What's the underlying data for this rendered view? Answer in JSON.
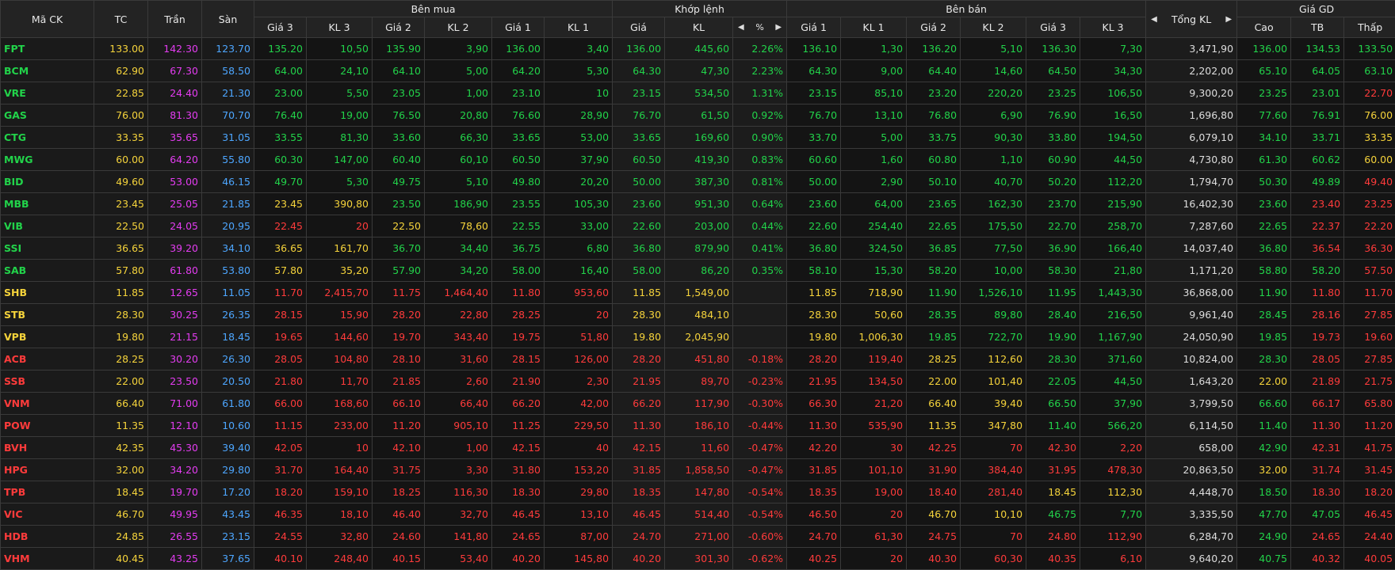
{
  "header": {
    "symbol": "Mã CK",
    "ref": "TC",
    "ceiling": "Trần",
    "floor": "Sàn",
    "buy_side": "Bên mua",
    "matched": "Khớp lệnh",
    "sell_side": "Bên bán",
    "total_vol": "Tổng KL",
    "price_range": "Giá GD",
    "bid_cols": [
      "Giá 3",
      "KL 3",
      "Giá 2",
      "KL 2",
      "Giá 1",
      "KL 1"
    ],
    "match_price": "Giá",
    "match_vol": "KL",
    "pct": "%",
    "ask_cols": [
      "Giá 1",
      "KL 1",
      "Giá 2",
      "KL 2",
      "Giá 3",
      "KL 3"
    ],
    "high": "Cao",
    "avg": "TB",
    "low": "Thấp",
    "prev_icon": "◀",
    "next_icon": "▶"
  },
  "colors": {
    "up": "#22d34a",
    "down": "#ff3b3b",
    "ref": "#f5d33b",
    "ceiling": "#e33cf0",
    "floor": "#4da6ff"
  },
  "rows": [
    {
      "sym": "FPT",
      "tc": "133.00",
      "tran": "142.30",
      "san": "123.70",
      "b3": "135.20",
      "bv3": "10,50",
      "b2": "135.90",
      "bv2": "3,90",
      "b1": "136.00",
      "bv1": "3,40",
      "mp": "136.00",
      "mv": "445,60",
      "pct": "2.26%",
      "a1": "136.10",
      "av1": "1,30",
      "a2": "136.20",
      "av2": "5,10",
      "a3": "136.30",
      "av3": "7,30",
      "tot": "3,471,90",
      "hi": "136.00",
      "avg": "134.53",
      "lo": "133.50",
      "c": {
        "sym": "up",
        "b3": "up",
        "b2": "up",
        "b1": "up",
        "mp": "up",
        "a1": "up",
        "a2": "up",
        "a3": "up",
        "hi": "up",
        "avg": "up",
        "lo": "up"
      }
    },
    {
      "sym": "BCM",
      "tc": "62.90",
      "tran": "67.30",
      "san": "58.50",
      "b3": "64.00",
      "bv3": "24,10",
      "b2": "64.10",
      "bv2": "5,00",
      "b1": "64.20",
      "bv1": "5,30",
      "mp": "64.30",
      "mv": "47,30",
      "pct": "2.23%",
      "a1": "64.30",
      "av1": "9,00",
      "a2": "64.40",
      "av2": "14,60",
      "a3": "64.50",
      "av3": "34,30",
      "tot": "2,202,00",
      "hi": "65.10",
      "avg": "64.05",
      "lo": "63.10",
      "c": {
        "sym": "up",
        "b3": "up",
        "b2": "up",
        "b1": "up",
        "mp": "up",
        "a1": "up",
        "a2": "up",
        "a3": "up",
        "hi": "up",
        "avg": "up",
        "lo": "up"
      }
    },
    {
      "sym": "VRE",
      "tc": "22.85",
      "tran": "24.40",
      "san": "21.30",
      "b3": "23.00",
      "bv3": "5,50",
      "b2": "23.05",
      "bv2": "1,00",
      "b1": "23.10",
      "bv1": "10",
      "mp": "23.15",
      "mv": "534,50",
      "pct": "1.31%",
      "a1": "23.15",
      "av1": "85,10",
      "a2": "23.20",
      "av2": "220,20",
      "a3": "23.25",
      "av3": "106,50",
      "tot": "9,300,20",
      "hi": "23.25",
      "avg": "23.01",
      "lo": "22.70",
      "c": {
        "sym": "up",
        "b3": "up",
        "b2": "up",
        "b1": "up",
        "mp": "up",
        "a1": "up",
        "a2": "up",
        "a3": "up",
        "hi": "up",
        "avg": "up",
        "lo": "down"
      }
    },
    {
      "sym": "GAS",
      "tc": "76.00",
      "tran": "81.30",
      "san": "70.70",
      "b3": "76.40",
      "bv3": "19,00",
      "b2": "76.50",
      "bv2": "20,80",
      "b1": "76.60",
      "bv1": "28,90",
      "mp": "76.70",
      "mv": "61,50",
      "pct": "0.92%",
      "a1": "76.70",
      "av1": "13,10",
      "a2": "76.80",
      "av2": "6,90",
      "a3": "76.90",
      "av3": "16,50",
      "tot": "1,696,80",
      "hi": "77.60",
      "avg": "76.91",
      "lo": "76.00",
      "c": {
        "sym": "up",
        "b3": "up",
        "b2": "up",
        "b1": "up",
        "mp": "up",
        "a1": "up",
        "a2": "up",
        "a3": "up",
        "hi": "up",
        "avg": "up",
        "lo": "ref"
      }
    },
    {
      "sym": "CTG",
      "tc": "33.35",
      "tran": "35.65",
      "san": "31.05",
      "b3": "33.55",
      "bv3": "81,30",
      "b2": "33.60",
      "bv2": "66,30",
      "b1": "33.65",
      "bv1": "53,00",
      "mp": "33.65",
      "mv": "169,60",
      "pct": "0.90%",
      "a1": "33.70",
      "av1": "5,00",
      "a2": "33.75",
      "av2": "90,30",
      "a3": "33.80",
      "av3": "194,50",
      "tot": "6,079,10",
      "hi": "34.10",
      "avg": "33.71",
      "lo": "33.35",
      "c": {
        "sym": "up",
        "b3": "up",
        "b2": "up",
        "b1": "up",
        "mp": "up",
        "a1": "up",
        "a2": "up",
        "a3": "up",
        "hi": "up",
        "avg": "up",
        "lo": "ref"
      }
    },
    {
      "sym": "MWG",
      "tc": "60.00",
      "tran": "64.20",
      "san": "55.80",
      "b3": "60.30",
      "bv3": "147,00",
      "b2": "60.40",
      "bv2": "60,10",
      "b1": "60.50",
      "bv1": "37,90",
      "mp": "60.50",
      "mv": "419,30",
      "pct": "0.83%",
      "a1": "60.60",
      "av1": "1,60",
      "a2": "60.80",
      "av2": "1,10",
      "a3": "60.90",
      "av3": "44,50",
      "tot": "4,730,80",
      "hi": "61.30",
      "avg": "60.62",
      "lo": "60.00",
      "c": {
        "sym": "up",
        "b3": "up",
        "b2": "up",
        "b1": "up",
        "mp": "up",
        "a1": "up",
        "a2": "up",
        "a3": "up",
        "hi": "up",
        "avg": "up",
        "lo": "ref"
      }
    },
    {
      "sym": "BID",
      "tc": "49.60",
      "tran": "53.00",
      "san": "46.15",
      "b3": "49.70",
      "bv3": "5,30",
      "b2": "49.75",
      "bv2": "5,10",
      "b1": "49.80",
      "bv1": "20,20",
      "mp": "50.00",
      "mv": "387,30",
      "pct": "0.81%",
      "a1": "50.00",
      "av1": "2,90",
      "a2": "50.10",
      "av2": "40,70",
      "a3": "50.20",
      "av3": "112,20",
      "tot": "1,794,70",
      "hi": "50.30",
      "avg": "49.89",
      "lo": "49.40",
      "c": {
        "sym": "up",
        "b3": "up",
        "b2": "up",
        "b1": "up",
        "mp": "up",
        "a1": "up",
        "a2": "up",
        "a3": "up",
        "hi": "up",
        "avg": "up",
        "lo": "down"
      }
    },
    {
      "sym": "MBB",
      "tc": "23.45",
      "tran": "25.05",
      "san": "21.85",
      "b3": "23.45",
      "bv3": "390,80",
      "b2": "23.50",
      "bv2": "186,90",
      "b1": "23.55",
      "bv1": "105,30",
      "mp": "23.60",
      "mv": "951,30",
      "pct": "0.64%",
      "a1": "23.60",
      "av1": "64,00",
      "a2": "23.65",
      "av2": "162,30",
      "a3": "23.70",
      "av3": "215,90",
      "tot": "16,402,30",
      "hi": "23.60",
      "avg": "23.40",
      "lo": "23.25",
      "c": {
        "sym": "up",
        "b3": "ref",
        "b2": "up",
        "b1": "up",
        "mp": "up",
        "a1": "up",
        "a2": "up",
        "a3": "up",
        "hi": "up",
        "avg": "down",
        "lo": "down"
      }
    },
    {
      "sym": "VIB",
      "tc": "22.50",
      "tran": "24.05",
      "san": "20.95",
      "b3": "22.45",
      "bv3": "20",
      "b2": "22.50",
      "bv2": "78,60",
      "b1": "22.55",
      "bv1": "33,00",
      "mp": "22.60",
      "mv": "203,00",
      "pct": "0.44%",
      "a1": "22.60",
      "av1": "254,40",
      "a2": "22.65",
      "av2": "175,50",
      "a3": "22.70",
      "av3": "258,70",
      "tot": "7,287,60",
      "hi": "22.65",
      "avg": "22.37",
      "lo": "22.20",
      "c": {
        "sym": "up",
        "b3": "down",
        "b2": "ref",
        "b1": "up",
        "mp": "up",
        "a1": "up",
        "a2": "up",
        "a3": "up",
        "hi": "up",
        "avg": "down",
        "lo": "down"
      }
    },
    {
      "sym": "SSI",
      "tc": "36.65",
      "tran": "39.20",
      "san": "34.10",
      "b3": "36.65",
      "bv3": "161,70",
      "b2": "36.70",
      "bv2": "34,40",
      "b1": "36.75",
      "bv1": "6,80",
      "mp": "36.80",
      "mv": "879,90",
      "pct": "0.41%",
      "a1": "36.80",
      "av1": "324,50",
      "a2": "36.85",
      "av2": "77,50",
      "a3": "36.90",
      "av3": "166,40",
      "tot": "14,037,40",
      "hi": "36.80",
      "avg": "36.54",
      "lo": "36.30",
      "c": {
        "sym": "up",
        "b3": "ref",
        "b2": "up",
        "b1": "up",
        "mp": "up",
        "a1": "up",
        "a2": "up",
        "a3": "up",
        "hi": "up",
        "avg": "down",
        "lo": "down"
      }
    },
    {
      "sym": "SAB",
      "tc": "57.80",
      "tran": "61.80",
      "san": "53.80",
      "b3": "57.80",
      "bv3": "35,20",
      "b2": "57.90",
      "bv2": "34,20",
      "b1": "58.00",
      "bv1": "16,40",
      "mp": "58.00",
      "mv": "86,20",
      "pct": "0.35%",
      "a1": "58.10",
      "av1": "15,30",
      "a2": "58.20",
      "av2": "10,00",
      "a3": "58.30",
      "av3": "21,80",
      "tot": "1,171,20",
      "hi": "58.80",
      "avg": "58.20",
      "lo": "57.50",
      "c": {
        "sym": "up",
        "b3": "ref",
        "b2": "up",
        "b1": "up",
        "mp": "up",
        "a1": "up",
        "a2": "up",
        "a3": "up",
        "hi": "up",
        "avg": "up",
        "lo": "down"
      }
    },
    {
      "sym": "SHB",
      "tc": "11.85",
      "tran": "12.65",
      "san": "11.05",
      "b3": "11.70",
      "bv3": "2,415,70",
      "b2": "11.75",
      "bv2": "1,464,40",
      "b1": "11.80",
      "bv1": "953,60",
      "mp": "11.85",
      "mv": "1,549,00",
      "pct": "",
      "a1": "11.85",
      "av1": "718,90",
      "a2": "11.90",
      "av2": "1,526,10",
      "a3": "11.95",
      "av3": "1,443,30",
      "tot": "36,868,00",
      "hi": "11.90",
      "avg": "11.80",
      "lo": "11.70",
      "c": {
        "sym": "ref",
        "b3": "down",
        "b2": "down",
        "b1": "down",
        "mp": "ref",
        "a1": "ref",
        "a2": "up",
        "a3": "up",
        "hi": "up",
        "avg": "down",
        "lo": "down"
      }
    },
    {
      "sym": "STB",
      "tc": "28.30",
      "tran": "30.25",
      "san": "26.35",
      "b3": "28.15",
      "bv3": "15,90",
      "b2": "28.20",
      "bv2": "22,80",
      "b1": "28.25",
      "bv1": "20",
      "mp": "28.30",
      "mv": "484,10",
      "pct": "",
      "a1": "28.30",
      "av1": "50,60",
      "a2": "28.35",
      "av2": "89,80",
      "a3": "28.40",
      "av3": "216,50",
      "tot": "9,961,40",
      "hi": "28.45",
      "avg": "28.16",
      "lo": "27.85",
      "c": {
        "sym": "ref",
        "b3": "down",
        "b2": "down",
        "b1": "down",
        "mp": "ref",
        "a1": "ref",
        "a2": "up",
        "a3": "up",
        "hi": "up",
        "avg": "down",
        "lo": "down"
      }
    },
    {
      "sym": "VPB",
      "tc": "19.80",
      "tran": "21.15",
      "san": "18.45",
      "b3": "19.65",
      "bv3": "144,60",
      "b2": "19.70",
      "bv2": "343,40",
      "b1": "19.75",
      "bv1": "51,80",
      "mp": "19.80",
      "mv": "2,045,90",
      "pct": "",
      "a1": "19.80",
      "av1": "1,006,30",
      "a2": "19.85",
      "av2": "722,70",
      "a3": "19.90",
      "av3": "1,167,90",
      "tot": "24,050,90",
      "hi": "19.85",
      "avg": "19.73",
      "lo": "19.60",
      "c": {
        "sym": "ref",
        "b3": "down",
        "b2": "down",
        "b1": "down",
        "mp": "ref",
        "a1": "ref",
        "a2": "up",
        "a3": "up",
        "hi": "up",
        "avg": "down",
        "lo": "down"
      }
    },
    {
      "sym": "ACB",
      "tc": "28.25",
      "tran": "30.20",
      "san": "26.30",
      "b3": "28.05",
      "bv3": "104,80",
      "b2": "28.10",
      "bv2": "31,60",
      "b1": "28.15",
      "bv1": "126,00",
      "mp": "28.20",
      "mv": "451,80",
      "pct": "-0.18%",
      "a1": "28.20",
      "av1": "119,40",
      "a2": "28.25",
      "av2": "112,60",
      "a3": "28.30",
      "av3": "371,60",
      "tot": "10,824,00",
      "hi": "28.30",
      "avg": "28.05",
      "lo": "27.85",
      "c": {
        "sym": "down",
        "b3": "down",
        "b2": "down",
        "b1": "down",
        "mp": "down",
        "a1": "down",
        "a2": "ref",
        "a3": "up",
        "hi": "up",
        "avg": "down",
        "lo": "down"
      }
    },
    {
      "sym": "SSB",
      "tc": "22.00",
      "tran": "23.50",
      "san": "20.50",
      "b3": "21.80",
      "bv3": "11,70",
      "b2": "21.85",
      "bv2": "2,60",
      "b1": "21.90",
      "bv1": "2,30",
      "mp": "21.95",
      "mv": "89,70",
      "pct": "-0.23%",
      "a1": "21.95",
      "av1": "134,50",
      "a2": "22.00",
      "av2": "101,40",
      "a3": "22.05",
      "av3": "44,50",
      "tot": "1,643,20",
      "hi": "22.00",
      "avg": "21.89",
      "lo": "21.75",
      "c": {
        "sym": "down",
        "b3": "down",
        "b2": "down",
        "b1": "down",
        "mp": "down",
        "a1": "down",
        "a2": "ref",
        "a3": "up",
        "hi": "ref",
        "avg": "down",
        "lo": "down"
      }
    },
    {
      "sym": "VNM",
      "tc": "66.40",
      "tran": "71.00",
      "san": "61.80",
      "b3": "66.00",
      "bv3": "168,60",
      "b2": "66.10",
      "bv2": "66,40",
      "b1": "66.20",
      "bv1": "42,00",
      "mp": "66.20",
      "mv": "117,90",
      "pct": "-0.30%",
      "a1": "66.30",
      "av1": "21,20",
      "a2": "66.40",
      "av2": "39,40",
      "a3": "66.50",
      "av3": "37,90",
      "tot": "3,799,50",
      "hi": "66.60",
      "avg": "66.17",
      "lo": "65.80",
      "c": {
        "sym": "down",
        "b3": "down",
        "b2": "down",
        "b1": "down",
        "mp": "down",
        "a1": "down",
        "a2": "ref",
        "a3": "up",
        "hi": "up",
        "avg": "down",
        "lo": "down"
      }
    },
    {
      "sym": "POW",
      "tc": "11.35",
      "tran": "12.10",
      "san": "10.60",
      "b3": "11.15",
      "bv3": "233,00",
      "b2": "11.20",
      "bv2": "905,10",
      "b1": "11.25",
      "bv1": "229,50",
      "mp": "11.30",
      "mv": "186,10",
      "pct": "-0.44%",
      "a1": "11.30",
      "av1": "535,90",
      "a2": "11.35",
      "av2": "347,80",
      "a3": "11.40",
      "av3": "566,20",
      "tot": "6,114,50",
      "hi": "11.40",
      "avg": "11.30",
      "lo": "11.20",
      "c": {
        "sym": "down",
        "b3": "down",
        "b2": "down",
        "b1": "down",
        "mp": "down",
        "a1": "down",
        "a2": "ref",
        "a3": "up",
        "hi": "up",
        "avg": "down",
        "lo": "down"
      }
    },
    {
      "sym": "BVH",
      "tc": "42.35",
      "tran": "45.30",
      "san": "39.40",
      "b3": "42.05",
      "bv3": "10",
      "b2": "42.10",
      "bv2": "1,00",
      "b1": "42.15",
      "bv1": "40",
      "mp": "42.15",
      "mv": "11,60",
      "pct": "-0.47%",
      "a1": "42.20",
      "av1": "30",
      "a2": "42.25",
      "av2": "70",
      "a3": "42.30",
      "av3": "2,20",
      "tot": "658,00",
      "hi": "42.90",
      "avg": "42.31",
      "lo": "41.75",
      "c": {
        "sym": "down",
        "b3": "down",
        "b2": "down",
        "b1": "down",
        "mp": "down",
        "a1": "down",
        "a2": "down",
        "a3": "down",
        "hi": "up",
        "avg": "down",
        "lo": "down"
      }
    },
    {
      "sym": "HPG",
      "tc": "32.00",
      "tran": "34.20",
      "san": "29.80",
      "b3": "31.70",
      "bv3": "164,40",
      "b2": "31.75",
      "bv2": "3,30",
      "b1": "31.80",
      "bv1": "153,20",
      "mp": "31.85",
      "mv": "1,858,50",
      "pct": "-0.47%",
      "a1": "31.85",
      "av1": "101,10",
      "a2": "31.90",
      "av2": "384,40",
      "a3": "31.95",
      "av3": "478,30",
      "tot": "20,863,50",
      "hi": "32.00",
      "avg": "31.74",
      "lo": "31.45",
      "c": {
        "sym": "down",
        "b3": "down",
        "b2": "down",
        "b1": "down",
        "mp": "down",
        "a1": "down",
        "a2": "down",
        "a3": "down",
        "hi": "ref",
        "avg": "down",
        "lo": "down"
      }
    },
    {
      "sym": "TPB",
      "tc": "18.45",
      "tran": "19.70",
      "san": "17.20",
      "b3": "18.20",
      "bv3": "159,10",
      "b2": "18.25",
      "bv2": "116,30",
      "b1": "18.30",
      "bv1": "29,80",
      "mp": "18.35",
      "mv": "147,80",
      "pct": "-0.54%",
      "a1": "18.35",
      "av1": "19,00",
      "a2": "18.40",
      "av2": "281,40",
      "a3": "18.45",
      "av3": "112,30",
      "tot": "4,448,70",
      "hi": "18.50",
      "avg": "18.30",
      "lo": "18.20",
      "c": {
        "sym": "down",
        "b3": "down",
        "b2": "down",
        "b1": "down",
        "mp": "down",
        "a1": "down",
        "a2": "down",
        "a3": "ref",
        "hi": "up",
        "avg": "down",
        "lo": "down"
      }
    },
    {
      "sym": "VIC",
      "tc": "46.70",
      "tran": "49.95",
      "san": "43.45",
      "b3": "46.35",
      "bv3": "18,10",
      "b2": "46.40",
      "bv2": "32,70",
      "b1": "46.45",
      "bv1": "13,10",
      "mp": "46.45",
      "mv": "514,40",
      "pct": "-0.54%",
      "a1": "46.50",
      "av1": "20",
      "a2": "46.70",
      "av2": "10,10",
      "a3": "46.75",
      "av3": "7,70",
      "tot": "3,335,50",
      "hi": "47.70",
      "avg": "47.05",
      "lo": "46.45",
      "c": {
        "sym": "down",
        "b3": "down",
        "b2": "down",
        "b1": "down",
        "mp": "down",
        "a1": "down",
        "a2": "ref",
        "a3": "up",
        "hi": "up",
        "avg": "up",
        "lo": "down"
      }
    },
    {
      "sym": "HDB",
      "tc": "24.85",
      "tran": "26.55",
      "san": "23.15",
      "b3": "24.55",
      "bv3": "32,80",
      "b2": "24.60",
      "bv2": "141,80",
      "b1": "24.65",
      "bv1": "87,00",
      "mp": "24.70",
      "mv": "271,00",
      "pct": "-0.60%",
      "a1": "24.70",
      "av1": "61,30",
      "a2": "24.75",
      "av2": "70",
      "a3": "24.80",
      "av3": "112,90",
      "tot": "6,284,70",
      "hi": "24.90",
      "avg": "24.65",
      "lo": "24.40",
      "c": {
        "sym": "down",
        "b3": "down",
        "b2": "down",
        "b1": "down",
        "mp": "down",
        "a1": "down",
        "a2": "down",
        "a3": "down",
        "hi": "up",
        "avg": "down",
        "lo": "down"
      }
    },
    {
      "sym": "VHM",
      "tc": "40.45",
      "tran": "43.25",
      "san": "37.65",
      "b3": "40.10",
      "bv3": "248,40",
      "b2": "40.15",
      "bv2": "53,40",
      "b1": "40.20",
      "bv1": "145,80",
      "mp": "40.20",
      "mv": "301,30",
      "pct": "-0.62%",
      "a1": "40.25",
      "av1": "20",
      "a2": "40.30",
      "av2": "60,30",
      "a3": "40.35",
      "av3": "6,10",
      "tot": "9,640,20",
      "hi": "40.75",
      "avg": "40.32",
      "lo": "40.05",
      "c": {
        "sym": "down",
        "b3": "down",
        "b2": "down",
        "b1": "down",
        "mp": "down",
        "a1": "down",
        "a2": "down",
        "a3": "down",
        "hi": "up",
        "avg": "down",
        "lo": "down"
      }
    }
  ]
}
